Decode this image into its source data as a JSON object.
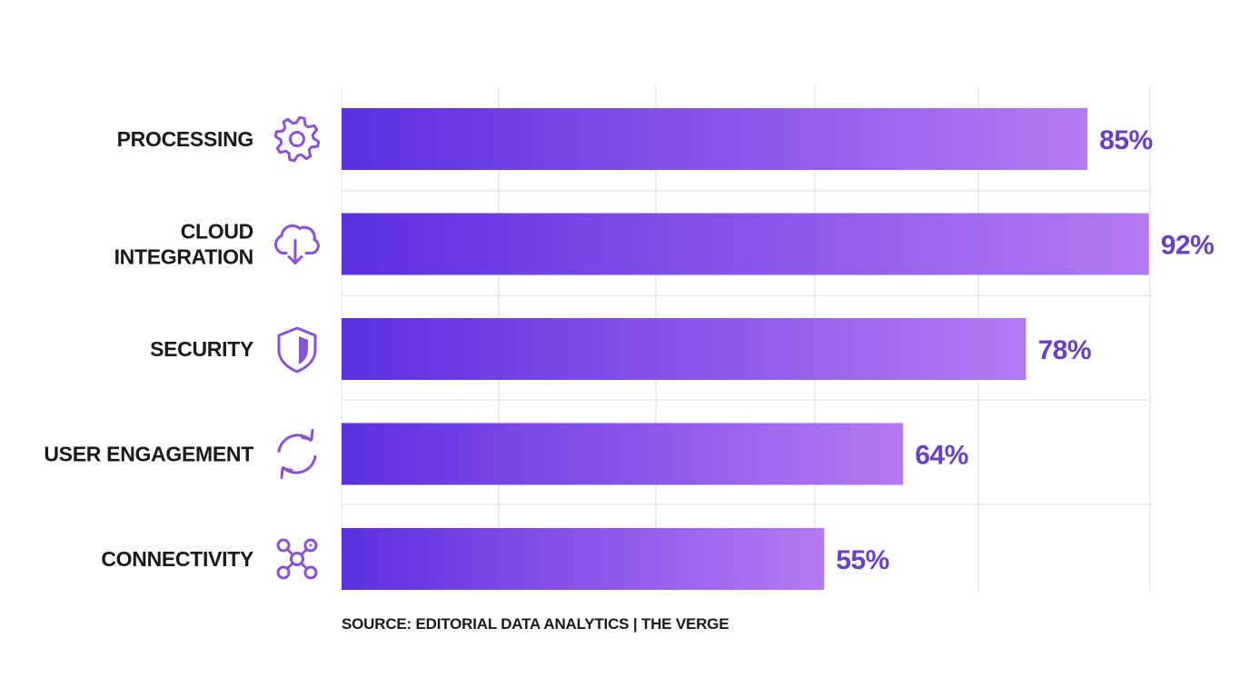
{
  "chart_data": {
    "type": "bar",
    "orientation": "horizontal",
    "categories": [
      "PROCESSING",
      "CLOUD INTEGRATION",
      "SECURITY",
      "USER ENGAGEMENT",
      "CONNECTIVITY"
    ],
    "values": [
      85,
      92,
      78,
      64,
      55
    ],
    "value_labels": [
      "85%",
      "92%",
      "78%",
      "64%",
      "55%"
    ],
    "icons": [
      "gear-icon",
      "cloud-download-icon",
      "shield-icon",
      "refresh-icon",
      "network-icon"
    ],
    "xlim": [
      0,
      100
    ],
    "grid": true,
    "legend": "none",
    "title": "",
    "xlabel": "",
    "ylabel": ""
  },
  "colors": {
    "bar_start": "#5c2fe0",
    "bar_end": "#b47af2",
    "value_text": "#6a3fc7",
    "icon": "#8a52d8",
    "grid": "#dcdcdc"
  },
  "source": "SOURCE: EDITORIAL DATA ANALYTICS | THE VERGE"
}
